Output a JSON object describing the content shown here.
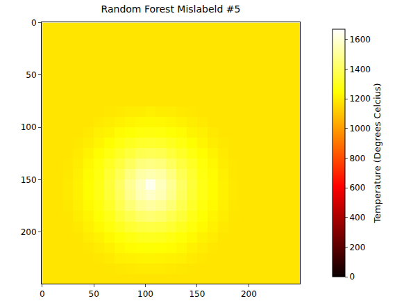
{
  "chart_data": {
    "type": "heatmap",
    "title": "Random Forest Mislabeld #5",
    "x": [
      5,
      15,
      25,
      35,
      45,
      55,
      65,
      75,
      85,
      95,
      105,
      115,
      125,
      135,
      145,
      155,
      165,
      175,
      185,
      195,
      205,
      215,
      225,
      235,
      245
    ],
    "y": [
      5,
      15,
      25,
      35,
      45,
      55,
      65,
      75,
      85,
      95,
      105,
      115,
      125,
      135,
      145,
      155,
      165,
      175,
      185,
      195,
      205,
      215,
      225,
      235,
      245
    ],
    "xlim": [
      -0.5,
      249.5
    ],
    "ylim": [
      249.5,
      -0.5
    ],
    "xticks": [
      0,
      50,
      100,
      150,
      200
    ],
    "yticks": [
      0,
      50,
      100,
      150,
      200
    ],
    "z": [
      [
        1180,
        1180,
        1180,
        1180,
        1180,
        1180,
        1180,
        1180,
        1180,
        1180,
        1180,
        1180,
        1180,
        1180,
        1180,
        1180,
        1180,
        1180,
        1180,
        1180,
        1180,
        1180,
        1180,
        1180,
        1180
      ],
      [
        1180,
        1180,
        1180,
        1180,
        1180,
        1180,
        1180,
        1180,
        1180,
        1180,
        1180,
        1180,
        1180,
        1180,
        1180,
        1180,
        1180,
        1180,
        1180,
        1180,
        1180,
        1180,
        1180,
        1180,
        1180
      ],
      [
        1180,
        1180,
        1180,
        1180,
        1180,
        1180,
        1180,
        1180,
        1180,
        1180,
        1180,
        1180,
        1180,
        1180,
        1180,
        1180,
        1180,
        1180,
        1180,
        1180,
        1180,
        1180,
        1180,
        1180,
        1180
      ],
      [
        1180,
        1180,
        1180,
        1180,
        1180,
        1180,
        1180,
        1180,
        1180,
        1180,
        1180,
        1180,
        1180,
        1180,
        1180,
        1180,
        1180,
        1180,
        1180,
        1180,
        1180,
        1180,
        1180,
        1180,
        1180
      ],
      [
        1180,
        1180,
        1180,
        1180,
        1180,
        1180,
        1180,
        1180,
        1180,
        1180,
        1180,
        1180,
        1180,
        1180,
        1180,
        1180,
        1180,
        1180,
        1180,
        1180,
        1180,
        1180,
        1180,
        1180,
        1180
      ],
      [
        1180,
        1180,
        1180,
        1180,
        1180,
        1180,
        1180,
        1180,
        1180,
        1180,
        1180,
        1180,
        1180,
        1180,
        1180,
        1180,
        1180,
        1180,
        1180,
        1180,
        1180,
        1180,
        1180,
        1180,
        1180
      ],
      [
        1180,
        1180,
        1180,
        1180,
        1180,
        1180,
        1180,
        1180,
        1180,
        1180,
        1180,
        1180,
        1180,
        1180,
        1180,
        1180,
        1180,
        1180,
        1180,
        1180,
        1180,
        1180,
        1180,
        1180,
        1180
      ],
      [
        1180,
        1180,
        1180,
        1180,
        1180,
        1180,
        1180,
        1180,
        1180,
        1180,
        1180,
        1180,
        1180,
        1180,
        1180,
        1180,
        1180,
        1180,
        1180,
        1180,
        1180,
        1180,
        1180,
        1180,
        1180
      ],
      [
        1180,
        1180,
        1180,
        1180,
        1180,
        1180,
        1185,
        1192,
        1198,
        1202,
        1205,
        1202,
        1198,
        1192,
        1185,
        1180,
        1180,
        1180,
        1180,
        1180,
        1180,
        1180,
        1180,
        1180,
        1180
      ],
      [
        1180,
        1180,
        1180,
        1180,
        1182,
        1190,
        1200,
        1210,
        1222,
        1228,
        1230,
        1228,
        1222,
        1210,
        1200,
        1190,
        1182,
        1180,
        1180,
        1180,
        1180,
        1180,
        1180,
        1180,
        1180
      ],
      [
        1180,
        1180,
        1180,
        1182,
        1190,
        1205,
        1219,
        1237,
        1252,
        1265,
        1268,
        1265,
        1252,
        1237,
        1219,
        1205,
        1190,
        1182,
        1180,
        1180,
        1180,
        1180,
        1180,
        1180,
        1180
      ],
      [
        1180,
        1180,
        1180,
        1188,
        1202,
        1222,
        1244,
        1272,
        1298,
        1316,
        1322,
        1316,
        1298,
        1272,
        1244,
        1222,
        1202,
        1188,
        1180,
        1180,
        1180,
        1180,
        1180,
        1180,
        1180
      ],
      [
        1180,
        1180,
        1182,
        1194,
        1216,
        1240,
        1272,
        1310,
        1346,
        1378,
        1386,
        1378,
        1346,
        1310,
        1272,
        1240,
        1216,
        1194,
        1182,
        1180,
        1180,
        1180,
        1180,
        1180,
        1180
      ],
      [
        1180,
        1180,
        1186,
        1202,
        1228,
        1260,
        1304,
        1352,
        1402,
        1450,
        1466,
        1450,
        1402,
        1352,
        1304,
        1260,
        1228,
        1202,
        1186,
        1180,
        1180,
        1180,
        1180,
        1180,
        1180
      ],
      [
        1180,
        1180,
        1189,
        1207,
        1237,
        1272,
        1328,
        1386,
        1458,
        1522,
        1542,
        1522,
        1458,
        1386,
        1328,
        1272,
        1237,
        1207,
        1189,
        1180,
        1180,
        1180,
        1180,
        1180,
        1180
      ],
      [
        1180,
        1180,
        1190,
        1210,
        1240,
        1280,
        1340,
        1410,
        1490,
        1560,
        1640,
        1560,
        1490,
        1410,
        1340,
        1280,
        1240,
        1210,
        1190,
        1180,
        1180,
        1180,
        1180,
        1180,
        1180
      ],
      [
        1180,
        1180,
        1190,
        1210,
        1240,
        1280,
        1334,
        1402,
        1482,
        1548,
        1580,
        1548,
        1482,
        1402,
        1334,
        1280,
        1240,
        1210,
        1190,
        1180,
        1180,
        1180,
        1180,
        1180,
        1180
      ],
      [
        1180,
        1180,
        1188,
        1205,
        1234,
        1268,
        1316,
        1378,
        1442,
        1490,
        1514,
        1490,
        1442,
        1378,
        1316,
        1268,
        1234,
        1205,
        1188,
        1180,
        1180,
        1180,
        1180,
        1180,
        1180
      ],
      [
        1180,
        1180,
        1184,
        1200,
        1222,
        1252,
        1286,
        1340,
        1378,
        1418,
        1434,
        1418,
        1378,
        1340,
        1286,
        1252,
        1222,
        1200,
        1184,
        1180,
        1180,
        1180,
        1180,
        1180,
        1180
      ],
      [
        1180,
        1180,
        1182,
        1192,
        1210,
        1234,
        1265,
        1298,
        1328,
        1352,
        1358,
        1352,
        1328,
        1298,
        1265,
        1234,
        1210,
        1192,
        1182,
        1180,
        1180,
        1180,
        1180,
        1180,
        1180
      ],
      [
        1180,
        1180,
        1180,
        1184,
        1198,
        1213,
        1234,
        1256,
        1276,
        1292,
        1298,
        1292,
        1276,
        1256,
        1234,
        1213,
        1198,
        1184,
        1180,
        1180,
        1180,
        1180,
        1180,
        1180,
        1180
      ],
      [
        1180,
        1180,
        1180,
        1180,
        1185,
        1198,
        1210,
        1228,
        1240,
        1248,
        1252,
        1248,
        1240,
        1228,
        1210,
        1198,
        1185,
        1180,
        1180,
        1180,
        1180,
        1180,
        1180,
        1180,
        1180
      ],
      [
        1180,
        1180,
        1180,
        1180,
        1180,
        1185,
        1194,
        1205,
        1210,
        1216,
        1219,
        1216,
        1210,
        1205,
        1194,
        1185,
        1180,
        1180,
        1180,
        1180,
        1180,
        1180,
        1180,
        1180,
        1180
      ],
      [
        1180,
        1180,
        1180,
        1180,
        1180,
        1180,
        1183,
        1188,
        1192,
        1195,
        1196,
        1195,
        1192,
        1188,
        1183,
        1180,
        1180,
        1180,
        1180,
        1180,
        1180,
        1180,
        1180,
        1180,
        1180
      ],
      [
        1180,
        1180,
        1180,
        1180,
        1180,
        1180,
        1180,
        1180,
        1181,
        1182,
        1182,
        1182,
        1181,
        1180,
        1180,
        1180,
        1180,
        1180,
        1180,
        1180,
        1180,
        1180,
        1180,
        1180,
        1180
      ]
    ],
    "colorbar": {
      "title": "Temperature (Degrees Celcius)",
      "range": [
        0,
        1670
      ],
      "ticks": [
        0,
        200,
        400,
        600,
        800,
        1000,
        1200,
        1400,
        1600
      ]
    }
  }
}
